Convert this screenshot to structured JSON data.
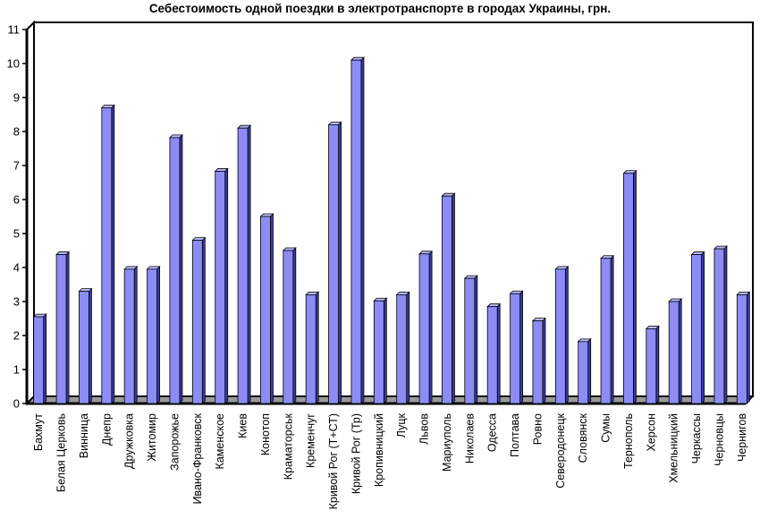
{
  "chart_data": {
    "type": "bar",
    "title": "Себестоимость одной поездки в электротранспорте в городах Украины, грн.",
    "xlabel": "",
    "ylabel": "",
    "ylim": [
      0,
      11
    ],
    "yticks": [
      "0",
      "1",
      "2",
      "3",
      "4",
      "5",
      "6",
      "7",
      "8",
      "9",
      "10",
      "11"
    ],
    "grid": false,
    "legend": "none",
    "bar_color": "#8c8cf4",
    "categories": [
      "Бахмут",
      "Белая Церковь",
      "Винница",
      "Днепр",
      "Дружковка",
      "Житомир",
      "Запорожье",
      "Ивано-Франковск",
      "Каменское",
      "Киев",
      "Конотоп",
      "Краматорськ",
      "Кременчуг",
      "Кривой Рог (Т+СТ)",
      "Кривой Рог (Тр)",
      "Кропивницкий",
      "Луцк",
      "Львов",
      "Мариуполь",
      "Николаев",
      "Одесса",
      "Полтава",
      "Ровно",
      "Северодонецк",
      "Словянск",
      "Сумы",
      "Тернополь",
      "Херсон",
      "Хмельницкий",
      "Черкассы",
      "Черновцы",
      "Чернигов"
    ],
    "values": [
      2.55,
      4.38,
      3.3,
      8.7,
      3.95,
      3.95,
      7.82,
      4.8,
      6.83,
      8.1,
      5.5,
      4.5,
      3.2,
      8.2,
      10.1,
      3.02,
      3.2,
      4.4,
      6.1,
      3.68,
      2.85,
      3.23,
      2.43,
      3.95,
      1.82,
      4.27,
      6.77,
      2.2,
      3.0,
      4.38,
      4.55,
      3.2
    ]
  }
}
